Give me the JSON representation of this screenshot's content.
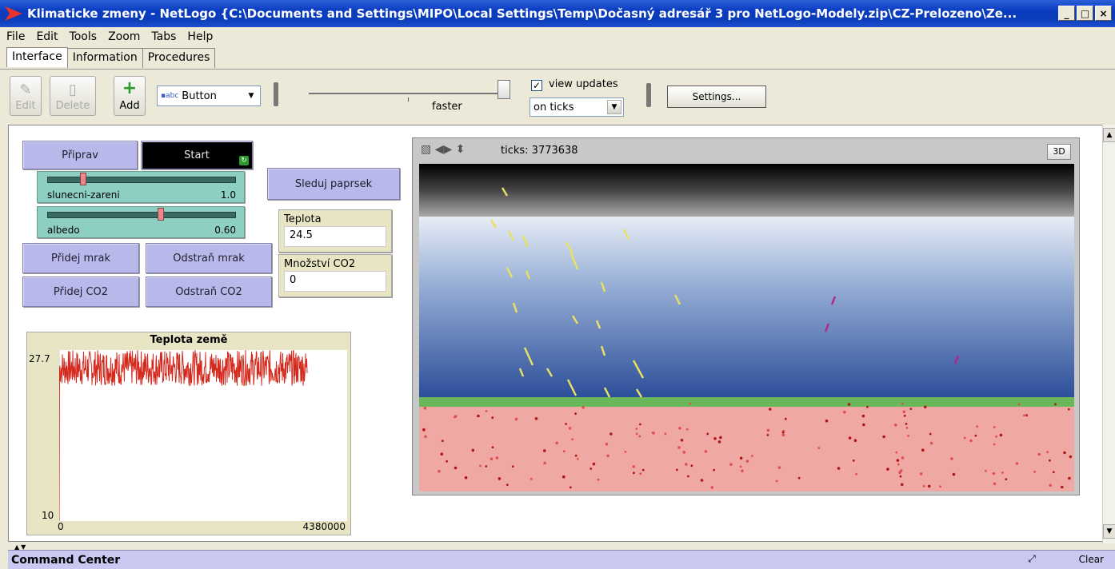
{
  "window": {
    "title": "Klimaticke zmeny - NetLogo {C:\\Documents and Settings\\MIPO\\Local Settings\\Temp\\Dočasný adresář 3 pro NetLogo-Modely.zip\\CZ-Prelozeno\\Ze...",
    "minimize": "_",
    "maximize": "□",
    "close": "×"
  },
  "menu": [
    "File",
    "Edit",
    "Tools",
    "Zoom",
    "Tabs",
    "Help"
  ],
  "tabs": [
    "Interface",
    "Information",
    "Procedures"
  ],
  "toolbar": {
    "edit": "Edit",
    "delete": "Delete",
    "add": "Add",
    "widget_type": "Button",
    "speed_label": "faster",
    "view_updates_label": "view updates",
    "view_updates_checked": "✓",
    "update_mode": "on ticks",
    "settings": "Settings..."
  },
  "widgets": {
    "priprav": "Připrav",
    "start": "Start",
    "sleduj": "Sleduj paprsek",
    "pridej_mrak": "Přidej mrak",
    "odstran_mrak": "Odstraň mrak",
    "pridej_co2": "Přidej CO2",
    "odstran_co2": "Odstraň CO2",
    "slider1": {
      "label": "slunecni-zareni",
      "value": "1.0",
      "fraction": 0.18
    },
    "slider2": {
      "label": "albedo",
      "value": "0.60",
      "fraction": 0.6
    },
    "teplota": {
      "label": "Teplota",
      "value": "24.5"
    },
    "co2": {
      "label": "Množství CO2",
      "value": "0"
    }
  },
  "plot": {
    "title": "Teplota země",
    "ymax": "27.7",
    "ymin": "10",
    "xmin": "0",
    "xmax": "4380000"
  },
  "chart_data": {
    "type": "line",
    "title": "Teplota země",
    "xlim": [
      0,
      4380000
    ],
    "ylim": [
      10,
      27.7
    ],
    "series": [
      {
        "color": "#d42a1e",
        "x_end": 3773638,
        "level_min": 24.0,
        "level_max": 27.7
      }
    ]
  },
  "view": {
    "ticks": "ticks: 3773638",
    "three_d": "3D"
  },
  "command_center": {
    "title": "Command Center",
    "clear": "Clear"
  }
}
